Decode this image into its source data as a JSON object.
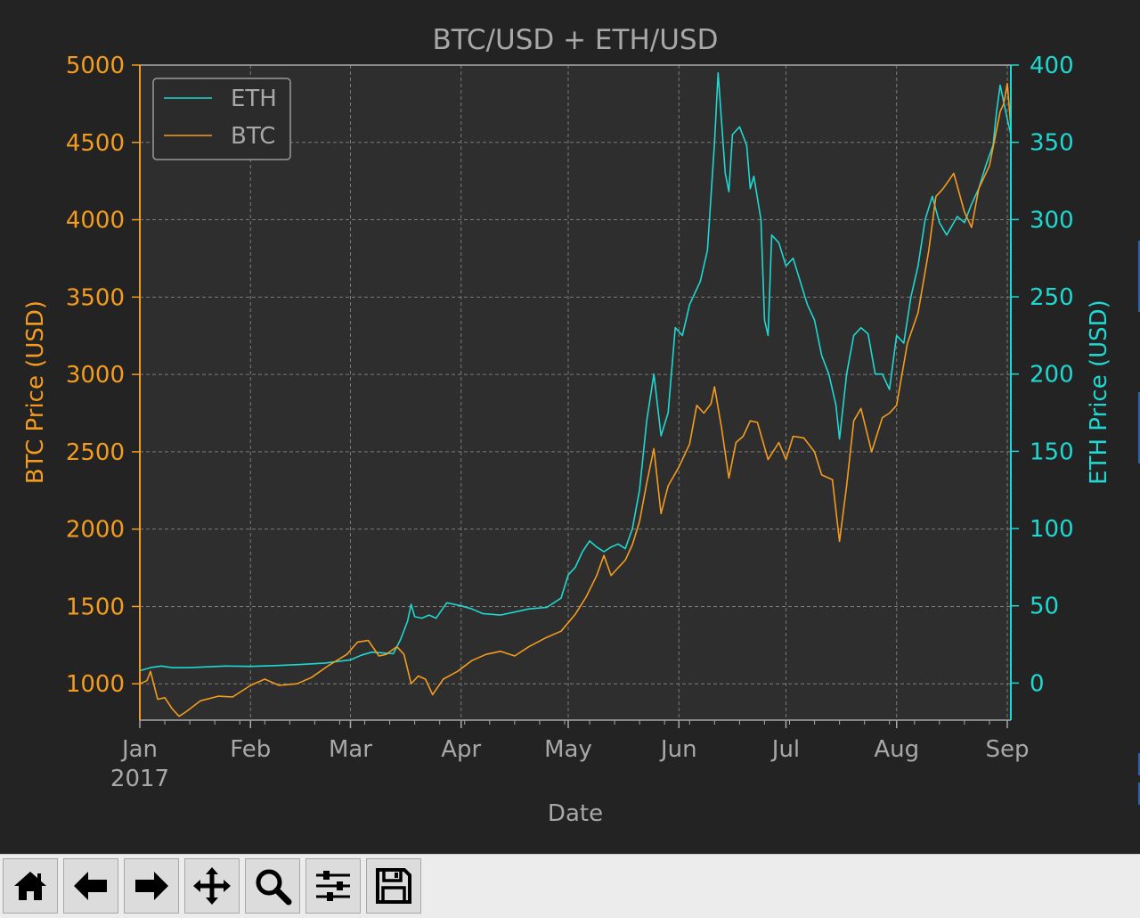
{
  "toolbar": {
    "buttons": [
      {
        "name": "home-button",
        "icon": "home-icon"
      },
      {
        "name": "back-button",
        "icon": "arrow-left-icon"
      },
      {
        "name": "forward-button",
        "icon": "arrow-right-icon"
      },
      {
        "name": "pan-button",
        "icon": "move-icon"
      },
      {
        "name": "zoom-button",
        "icon": "magnifier-icon"
      },
      {
        "name": "configure-subplots-button",
        "icon": "sliders-icon"
      },
      {
        "name": "save-button",
        "icon": "floppy-disk-icon"
      }
    ]
  },
  "chart_data": {
    "type": "line",
    "title": "BTC/USD + ETH/USD",
    "xlabel": "Date",
    "ylabel_left": "BTC Price (USD)",
    "ylabel_right": "ETH Price (USD)",
    "x_range": [
      "2017-01-01",
      "2017-09-02"
    ],
    "x_ticks": [
      {
        "date": "2017-01-01",
        "label": "Jan",
        "sublabel": "2017"
      },
      {
        "date": "2017-02-01",
        "label": "Feb"
      },
      {
        "date": "2017-03-01",
        "label": "Mar"
      },
      {
        "date": "2017-04-01",
        "label": "Apr"
      },
      {
        "date": "2017-05-01",
        "label": "May"
      },
      {
        "date": "2017-06-01",
        "label": "Jun"
      },
      {
        "date": "2017-07-01",
        "label": "Jul"
      },
      {
        "date": "2017-08-01",
        "label": "Aug"
      },
      {
        "date": "2017-09-01",
        "label": "Sep"
      }
    ],
    "y_left": {
      "lim": [
        765,
        5000
      ],
      "ticks": [
        1000,
        1500,
        2000,
        2500,
        3000,
        3500,
        4000,
        4500,
        5000
      ]
    },
    "y_right": {
      "lim": [
        -24,
        400
      ],
      "ticks": [
        0,
        50,
        100,
        150,
        200,
        250,
        300,
        350,
        400
      ]
    },
    "grid": true,
    "legend_position": "top-left",
    "colors": {
      "background": "#232323",
      "axes_face": "#2e2e2e",
      "btc": "#f39c1f",
      "eth": "#1fd8d2",
      "text": "#a8a8a8",
      "grid": "#7a7a7a"
    },
    "series": [
      {
        "name": "ETH",
        "axis": "right",
        "color": "#1fd8d2",
        "points": [
          [
            "2017-01-01",
            8
          ],
          [
            "2017-01-04",
            10
          ],
          [
            "2017-01-07",
            11
          ],
          [
            "2017-01-10",
            10
          ],
          [
            "2017-01-15",
            10
          ],
          [
            "2017-01-20",
            10.5
          ],
          [
            "2017-01-25",
            11
          ],
          [
            "2017-02-01",
            10.8
          ],
          [
            "2017-02-08",
            11.3
          ],
          [
            "2017-02-15",
            12
          ],
          [
            "2017-02-22",
            13
          ],
          [
            "2017-03-01",
            15
          ],
          [
            "2017-03-04",
            18
          ],
          [
            "2017-03-07",
            20
          ],
          [
            "2017-03-10",
            19.5
          ],
          [
            "2017-03-13",
            19
          ],
          [
            "2017-03-15",
            28
          ],
          [
            "2017-03-17",
            40
          ],
          [
            "2017-03-18",
            51
          ],
          [
            "2017-03-19",
            43
          ],
          [
            "2017-03-21",
            42
          ],
          [
            "2017-03-23",
            44
          ],
          [
            "2017-03-25",
            42
          ],
          [
            "2017-03-28",
            52
          ],
          [
            "2017-04-01",
            50
          ],
          [
            "2017-04-04",
            48
          ],
          [
            "2017-04-07",
            45
          ],
          [
            "2017-04-12",
            44
          ],
          [
            "2017-04-16",
            46
          ],
          [
            "2017-04-20",
            48
          ],
          [
            "2017-04-25",
            49
          ],
          [
            "2017-04-29",
            55
          ],
          [
            "2017-05-01",
            70
          ],
          [
            "2017-05-03",
            75
          ],
          [
            "2017-05-05",
            85
          ],
          [
            "2017-05-07",
            92
          ],
          [
            "2017-05-09",
            88
          ],
          [
            "2017-05-11",
            85
          ],
          [
            "2017-05-13",
            88
          ],
          [
            "2017-05-15",
            90
          ],
          [
            "2017-05-17",
            87
          ],
          [
            "2017-05-19",
            100
          ],
          [
            "2017-05-21",
            125
          ],
          [
            "2017-05-23",
            170
          ],
          [
            "2017-05-25",
            200
          ],
          [
            "2017-05-27",
            160
          ],
          [
            "2017-05-29",
            175
          ],
          [
            "2017-05-31",
            230
          ],
          [
            "2017-06-02",
            225
          ],
          [
            "2017-06-04",
            245
          ],
          [
            "2017-06-07",
            260
          ],
          [
            "2017-06-09",
            280
          ],
          [
            "2017-06-11",
            350
          ],
          [
            "2017-06-12",
            395
          ],
          [
            "2017-06-14",
            330
          ],
          [
            "2017-06-15",
            318
          ],
          [
            "2017-06-16",
            355
          ],
          [
            "2017-06-18",
            360
          ],
          [
            "2017-06-20",
            348
          ],
          [
            "2017-06-21",
            320
          ],
          [
            "2017-06-22",
            328
          ],
          [
            "2017-06-24",
            300
          ],
          [
            "2017-06-25",
            235
          ],
          [
            "2017-06-26",
            225
          ],
          [
            "2017-06-27",
            290
          ],
          [
            "2017-06-29",
            285
          ],
          [
            "2017-07-01",
            270
          ],
          [
            "2017-07-03",
            275
          ],
          [
            "2017-07-05",
            260
          ],
          [
            "2017-07-07",
            245
          ],
          [
            "2017-07-09",
            235
          ],
          [
            "2017-07-11",
            212
          ],
          [
            "2017-07-13",
            200
          ],
          [
            "2017-07-15",
            180
          ],
          [
            "2017-07-16",
            158
          ],
          [
            "2017-07-18",
            200
          ],
          [
            "2017-07-20",
            225
          ],
          [
            "2017-07-22",
            230
          ],
          [
            "2017-07-24",
            226
          ],
          [
            "2017-07-26",
            200
          ],
          [
            "2017-07-28",
            200
          ],
          [
            "2017-07-30",
            190
          ],
          [
            "2017-08-01",
            225
          ],
          [
            "2017-08-03",
            220
          ],
          [
            "2017-08-05",
            250
          ],
          [
            "2017-08-07",
            270
          ],
          [
            "2017-08-09",
            300
          ],
          [
            "2017-08-11",
            315
          ],
          [
            "2017-08-13",
            298
          ],
          [
            "2017-08-15",
            290
          ],
          [
            "2017-08-18",
            302
          ],
          [
            "2017-08-20",
            298
          ],
          [
            "2017-08-22",
            310
          ],
          [
            "2017-08-24",
            320
          ],
          [
            "2017-08-26",
            335
          ],
          [
            "2017-08-28",
            348
          ],
          [
            "2017-08-29",
            370
          ],
          [
            "2017-08-30",
            387
          ],
          [
            "2017-09-01",
            365
          ],
          [
            "2017-09-02",
            355
          ]
        ]
      },
      {
        "name": "BTC",
        "axis": "left",
        "color": "#f39c1f",
        "points": [
          [
            "2017-01-01",
            1000
          ],
          [
            "2017-01-03",
            1020
          ],
          [
            "2017-01-04",
            1080
          ],
          [
            "2017-01-06",
            900
          ],
          [
            "2017-01-08",
            910
          ],
          [
            "2017-01-10",
            840
          ],
          [
            "2017-01-12",
            790
          ],
          [
            "2017-01-14",
            820
          ],
          [
            "2017-01-18",
            890
          ],
          [
            "2017-01-23",
            920
          ],
          [
            "2017-01-27",
            915
          ],
          [
            "2017-02-01",
            990
          ],
          [
            "2017-02-05",
            1030
          ],
          [
            "2017-02-09",
            990
          ],
          [
            "2017-02-14",
            1000
          ],
          [
            "2017-02-18",
            1040
          ],
          [
            "2017-02-23",
            1120
          ],
          [
            "2017-02-28",
            1190
          ],
          [
            "2017-03-03",
            1270
          ],
          [
            "2017-03-06",
            1280
          ],
          [
            "2017-03-09",
            1180
          ],
          [
            "2017-03-11",
            1190
          ],
          [
            "2017-03-14",
            1240
          ],
          [
            "2017-03-16",
            1190
          ],
          [
            "2017-03-18",
            1000
          ],
          [
            "2017-03-20",
            1050
          ],
          [
            "2017-03-22",
            1030
          ],
          [
            "2017-03-24",
            930
          ],
          [
            "2017-03-27",
            1030
          ],
          [
            "2017-03-31",
            1080
          ],
          [
            "2017-04-04",
            1150
          ],
          [
            "2017-04-08",
            1190
          ],
          [
            "2017-04-12",
            1210
          ],
          [
            "2017-04-16",
            1180
          ],
          [
            "2017-04-20",
            1240
          ],
          [
            "2017-04-25",
            1300
          ],
          [
            "2017-04-29",
            1340
          ],
          [
            "2017-05-03",
            1450
          ],
          [
            "2017-05-06",
            1560
          ],
          [
            "2017-05-09",
            1700
          ],
          [
            "2017-05-11",
            1830
          ],
          [
            "2017-05-13",
            1700
          ],
          [
            "2017-05-15",
            1750
          ],
          [
            "2017-05-17",
            1800
          ],
          [
            "2017-05-19",
            1900
          ],
          [
            "2017-05-21",
            2050
          ],
          [
            "2017-05-23",
            2300
          ],
          [
            "2017-05-25",
            2520
          ],
          [
            "2017-05-27",
            2100
          ],
          [
            "2017-05-29",
            2280
          ],
          [
            "2017-06-01",
            2400
          ],
          [
            "2017-06-04",
            2550
          ],
          [
            "2017-06-06",
            2800
          ],
          [
            "2017-06-08",
            2750
          ],
          [
            "2017-06-10",
            2810
          ],
          [
            "2017-06-11",
            2920
          ],
          [
            "2017-06-13",
            2650
          ],
          [
            "2017-06-15",
            2330
          ],
          [
            "2017-06-17",
            2560
          ],
          [
            "2017-06-19",
            2600
          ],
          [
            "2017-06-21",
            2700
          ],
          [
            "2017-06-23",
            2690
          ],
          [
            "2017-06-26",
            2450
          ],
          [
            "2017-06-29",
            2560
          ],
          [
            "2017-07-01",
            2450
          ],
          [
            "2017-07-03",
            2600
          ],
          [
            "2017-07-06",
            2590
          ],
          [
            "2017-07-09",
            2500
          ],
          [
            "2017-07-11",
            2350
          ],
          [
            "2017-07-14",
            2320
          ],
          [
            "2017-07-16",
            1920
          ],
          [
            "2017-07-18",
            2280
          ],
          [
            "2017-07-20",
            2700
          ],
          [
            "2017-07-22",
            2780
          ],
          [
            "2017-07-25",
            2500
          ],
          [
            "2017-07-28",
            2720
          ],
          [
            "2017-07-30",
            2750
          ],
          [
            "2017-08-01",
            2800
          ],
          [
            "2017-08-04",
            3200
          ],
          [
            "2017-08-07",
            3400
          ],
          [
            "2017-08-10",
            3800
          ],
          [
            "2017-08-12",
            4150
          ],
          [
            "2017-08-14",
            4200
          ],
          [
            "2017-08-17",
            4300
          ],
          [
            "2017-08-20",
            4050
          ],
          [
            "2017-08-22",
            3950
          ],
          [
            "2017-08-24",
            4200
          ],
          [
            "2017-08-27",
            4350
          ],
          [
            "2017-08-30",
            4700
          ],
          [
            "2017-08-31",
            4750
          ],
          [
            "2017-09-01",
            4880
          ],
          [
            "2017-09-02",
            4600
          ]
        ]
      }
    ]
  }
}
